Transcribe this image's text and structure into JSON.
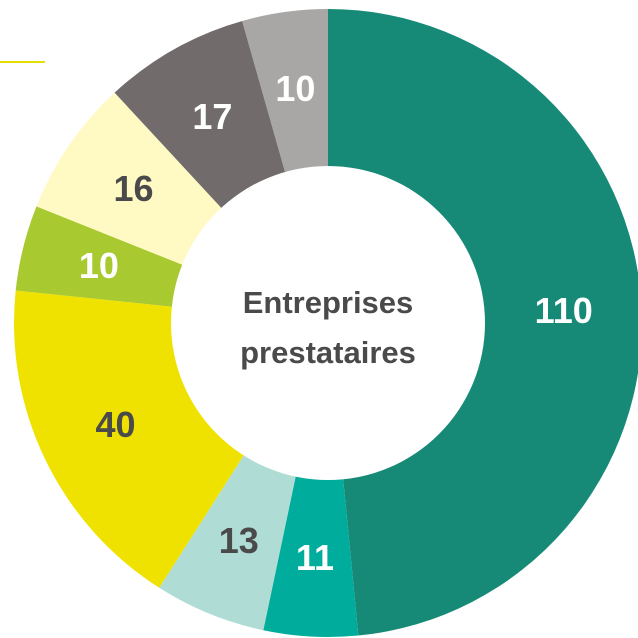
{
  "chart_data": {
    "type": "donut",
    "center_label": [
      "Entreprises",
      "prestataires"
    ],
    "values": [
      110,
      11,
      13,
      40,
      10,
      16,
      17,
      10
    ],
    "colors": [
      "#178a77",
      "#00ad9c",
      "#b0dcd6",
      "#f0e200",
      "#a8c92f",
      "#fff9c4",
      "#716c6b",
      "#a8a7a6"
    ],
    "label_colors": [
      "#ffffff",
      "#ffffff",
      "#4a4a4a",
      "#4a4a4a",
      "#ffffff",
      "#4a4a4a",
      "#ffffff",
      "#ffffff"
    ]
  }
}
